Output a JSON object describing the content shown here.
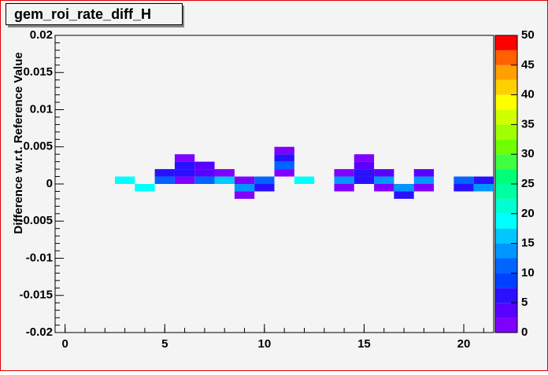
{
  "chart_data": {
    "type": "heatmap",
    "title": "gem_roi_rate_diff_H",
    "y_label": "Difference w.r.t. Reference Value",
    "x": [
      3,
      4,
      5,
      5,
      6,
      6,
      6,
      6,
      7,
      7,
      7,
      8,
      8,
      9,
      9,
      9,
      10,
      10,
      11,
      11,
      11,
      11,
      12,
      14,
      14,
      14,
      15,
      15,
      15,
      15,
      16,
      16,
      16,
      17,
      17,
      18,
      18,
      18,
      20,
      20,
      21,
      21
    ],
    "y": [
      0.0005,
      -0.0005,
      0.0015,
      0.0005,
      0.0035,
      0.0025,
      0.0015,
      0.0005,
      0.0025,
      0.0015,
      0.0005,
      0.0015,
      0.0005,
      0.0005,
      -0.0005,
      -0.0015,
      0.0005,
      -0.0005,
      0.0045,
      0.0035,
      0.0025,
      0.0015,
      0.0005,
      0.0015,
      0.0005,
      -0.0005,
      0.0035,
      0.0025,
      0.0015,
      0.0005,
      0.0015,
      0.0005,
      -0.0005,
      -0.0005,
      -0.0015,
      0.0015,
      0.0005,
      -0.0005,
      0.0005,
      -0.0005,
      0.0005,
      -0.0005
    ],
    "values": [
      19,
      19,
      6,
      11,
      2,
      6,
      6,
      2,
      3,
      3,
      11,
      2,
      16,
      2,
      14,
      2,
      10,
      6,
      2,
      6,
      11,
      2,
      19,
      2,
      13,
      2,
      2,
      4,
      6,
      6,
      4,
      13,
      2,
      14,
      6,
      4,
      13,
      2,
      12,
      6,
      6,
      13
    ],
    "xlim": [
      -0.5,
      21.5
    ],
    "xticks": [
      0,
      5,
      10,
      15,
      20
    ],
    "ylim": [
      -0.02,
      0.02
    ],
    "yticks": [
      -0.02,
      -0.015,
      -0.01,
      -0.005,
      0,
      0.005,
      0.01,
      0.015,
      0.02
    ],
    "zlim": [
      0,
      50
    ],
    "zticks": [
      0,
      5,
      10,
      15,
      20,
      25,
      30,
      35,
      40,
      45,
      50
    ],
    "palette": [
      "#8000ff",
      "#5a00ff",
      "#2a10ff",
      "#0040ff",
      "#0064ff",
      "#0096ff",
      "#00c8ff",
      "#00ffff",
      "#00ffd2",
      "#00ffa0",
      "#00ff78",
      "#40ff40",
      "#70ff00",
      "#a0ff00",
      "#d0ff00",
      "#ffff00",
      "#ffd000",
      "#ffa000",
      "#ff6000",
      "#ff0000"
    ]
  }
}
